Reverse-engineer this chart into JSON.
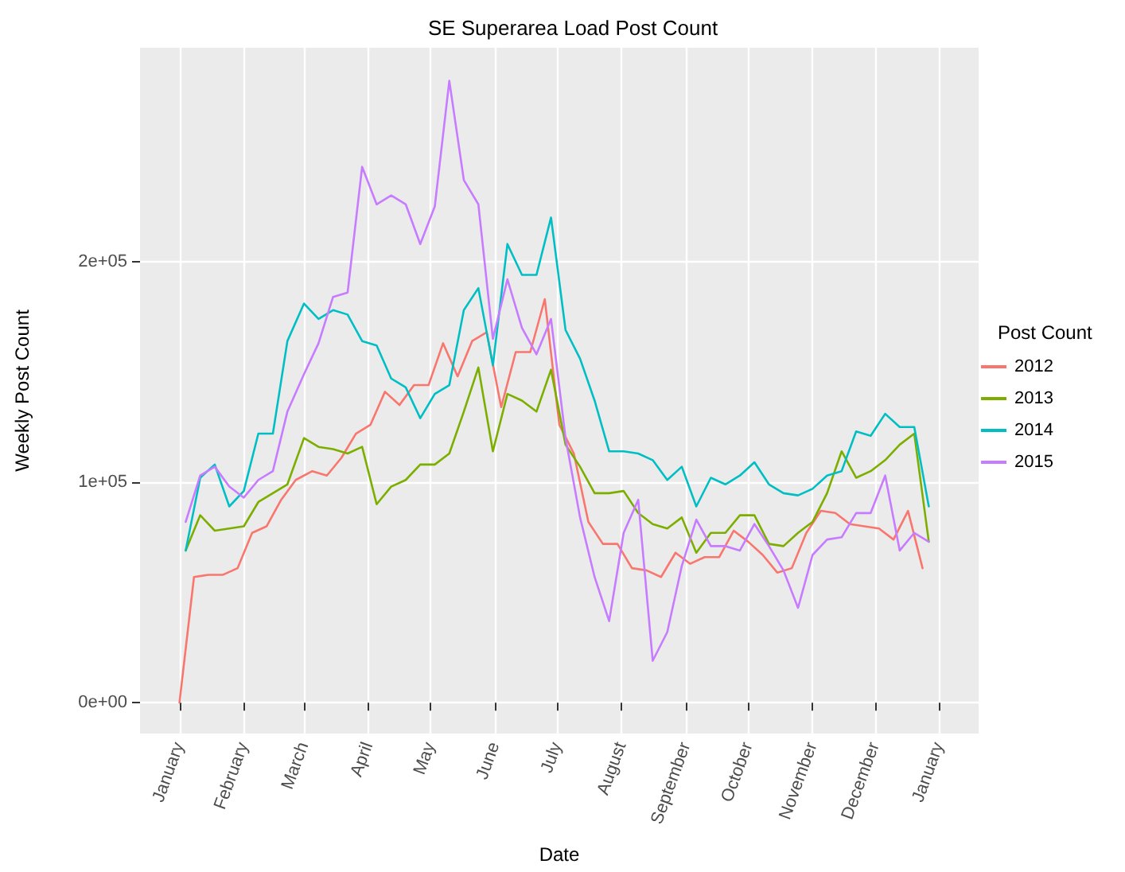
{
  "chart_data": {
    "type": "line",
    "title": "SE Superarea Load Post Count",
    "xlabel": "Date",
    "ylabel": "Weekly Post Count",
    "legend_title": "Post Count",
    "xlim": [
      "2011-12-13",
      "2013-01-20"
    ],
    "xticks": [
      {
        "value": "2012-01-01",
        "label": "January"
      },
      {
        "value": "2012-02-01",
        "label": "February"
      },
      {
        "value": "2012-03-01",
        "label": "March"
      },
      {
        "value": "2012-04-01",
        "label": "April"
      },
      {
        "value": "2012-05-01",
        "label": "May"
      },
      {
        "value": "2012-06-01",
        "label": "June"
      },
      {
        "value": "2012-07-01",
        "label": "July"
      },
      {
        "value": "2012-08-01",
        "label": "August"
      },
      {
        "value": "2012-09-01",
        "label": "September"
      },
      {
        "value": "2012-10-01",
        "label": "October"
      },
      {
        "value": "2012-11-01",
        "label": "November"
      },
      {
        "value": "2012-12-01",
        "label": "December"
      },
      {
        "value": "2013-01-01",
        "label": "January"
      }
    ],
    "x": [
      "2012-01-04",
      "2012-01-11",
      "2012-01-18",
      "2012-01-25",
      "2012-02-01",
      "2012-02-08",
      "2012-02-15",
      "2012-02-22",
      "2012-03-01",
      "2012-03-08",
      "2012-03-15",
      "2012-03-22",
      "2012-03-29",
      "2012-04-05",
      "2012-04-12",
      "2012-04-19",
      "2012-04-26",
      "2012-05-03",
      "2012-05-10",
      "2012-05-17",
      "2012-05-24",
      "2012-05-31",
      "2012-06-07",
      "2012-06-14",
      "2012-06-21",
      "2012-06-28",
      "2012-07-05",
      "2012-07-12",
      "2012-07-19",
      "2012-07-26",
      "2012-08-02",
      "2012-08-09",
      "2012-08-16",
      "2012-08-23",
      "2012-08-30",
      "2012-09-06",
      "2012-09-13",
      "2012-09-20",
      "2012-09-27",
      "2012-10-04",
      "2012-10-11",
      "2012-10-18",
      "2012-10-25",
      "2012-11-01",
      "2012-11-08",
      "2012-11-15",
      "2012-11-22",
      "2012-11-29",
      "2012-12-06",
      "2012-12-13",
      "2012-12-20",
      "2012-12-27"
    ],
    "ylim": [
      -14000,
      297000
    ],
    "yticks": [
      {
        "value": 0,
        "label": "0e+00"
      },
      {
        "value": 100000,
        "label": "1e+05"
      },
      {
        "value": 200000,
        "label": "2e+05"
      }
    ],
    "grid": true,
    "legend": "right",
    "marker": "none",
    "line_style": "solid",
    "series": [
      {
        "name": "2012",
        "color": "#f8766d",
        "x": [
          "2012-01-01",
          "2012-01-08",
          "2012-01-15",
          "2012-01-22",
          "2012-01-29",
          "2012-02-05",
          "2012-02-12",
          "2012-02-19",
          "2012-02-26",
          "2012-03-05",
          "2012-03-12",
          "2012-03-19",
          "2012-03-26",
          "2012-04-02",
          "2012-04-09",
          "2012-04-16",
          "2012-04-23",
          "2012-04-30",
          "2012-05-07",
          "2012-05-14",
          "2012-05-21",
          "2012-05-28",
          "2012-06-04",
          "2012-06-11",
          "2012-06-18",
          "2012-06-25",
          "2012-07-02",
          "2012-07-09",
          "2012-07-16",
          "2012-07-23",
          "2012-07-30",
          "2012-08-06",
          "2012-08-13",
          "2012-08-20",
          "2012-08-27",
          "2012-09-03",
          "2012-09-10",
          "2012-09-17",
          "2012-09-24",
          "2012-10-01",
          "2012-10-08",
          "2012-10-15",
          "2012-10-22",
          "2012-10-29",
          "2012-11-05",
          "2012-11-12",
          "2012-11-19",
          "2012-11-26",
          "2012-12-03",
          "2012-12-10",
          "2012-12-17",
          "2012-12-24"
        ],
        "values": [
          0,
          57000,
          58000,
          58000,
          61000,
          77000,
          80000,
          92000,
          101000,
          105000,
          103000,
          111000,
          122000,
          126000,
          141000,
          135000,
          144000,
          144000,
          163000,
          148000,
          164000,
          168000,
          134000,
          159000,
          159000,
          183000,
          126000,
          113000,
          82000,
          72000,
          72000,
          61000,
          60000,
          57000,
          68000,
          63000,
          66000,
          66000,
          78000,
          73000,
          67000,
          59000,
          61000,
          77000,
          87000,
          86000,
          81000,
          80000,
          79000,
          74000,
          87000,
          61000
        ]
      },
      {
        "name": "2013",
        "color": "#7cae00",
        "values": [
          69000,
          85000,
          78000,
          79000,
          80000,
          91000,
          95000,
          99000,
          120000,
          116000,
          115000,
          113000,
          116000,
          90000,
          98000,
          101000,
          108000,
          108000,
          113000,
          132000,
          152000,
          114000,
          140000,
          137000,
          132000,
          151000,
          117000,
          107000,
          95000,
          95000,
          96000,
          86000,
          81000,
          79000,
          84000,
          68000,
          77000,
          77000,
          85000,
          85000,
          72000,
          71000,
          77000,
          82000,
          95000,
          114000,
          102000,
          105000,
          110000,
          117000,
          122000,
          73000
        ]
      },
      {
        "name": "2014",
        "color": "#00bfc4",
        "values": [
          69000,
          102000,
          108000,
          89000,
          96000,
          122000,
          122000,
          164000,
          181000,
          174000,
          178000,
          176000,
          164000,
          162000,
          147000,
          143000,
          129000,
          140000,
          144000,
          178000,
          188000,
          153000,
          208000,
          194000,
          194000,
          220000,
          169000,
          156000,
          137000,
          114000,
          114000,
          113000,
          110000,
          101000,
          107000,
          89000,
          102000,
          99000,
          103000,
          109000,
          99000,
          95000,
          94000,
          97000,
          103000,
          105000,
          123000,
          121000,
          131000,
          125000,
          125000,
          89000
        ]
      },
      {
        "name": "2015",
        "color": "#c77cff",
        "values": [
          82000,
          103000,
          107000,
          98000,
          93000,
          101000,
          105000,
          132000,
          149000,
          163000,
          184000,
          186000,
          243000,
          226000,
          230000,
          226000,
          208000,
          225000,
          282000,
          237000,
          226000,
          165000,
          192000,
          170000,
          158000,
          174000,
          120000,
          84000,
          57000,
          37000,
          77000,
          92000,
          19000,
          32000,
          62000,
          83000,
          71000,
          71000,
          69000,
          81000,
          71000,
          60000,
          43000,
          67000,
          74000,
          75000,
          86000,
          86000,
          103000,
          69000,
          77000,
          73000
        ]
      }
    ]
  }
}
